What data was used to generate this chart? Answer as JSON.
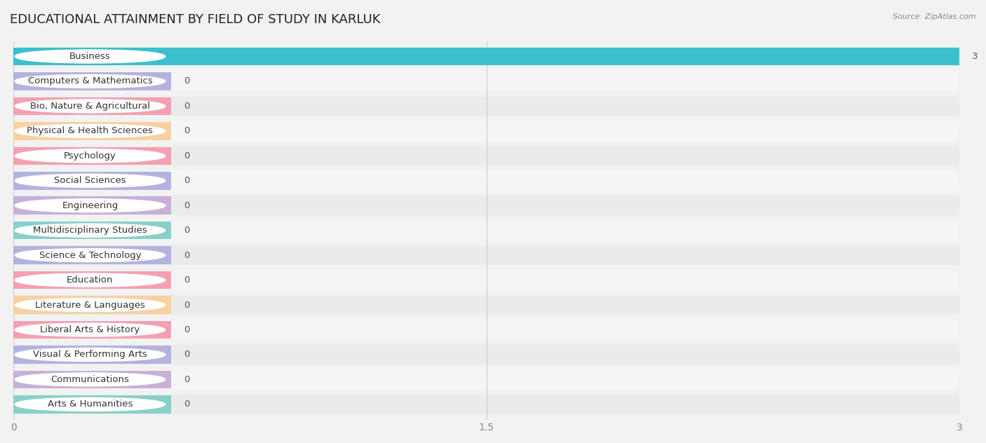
{
  "title": "EDUCATIONAL ATTAINMENT BY FIELD OF STUDY IN KARLUK",
  "source": "Source: ZipAtlas.com",
  "categories": [
    "Business",
    "Computers & Mathematics",
    "Bio, Nature & Agricultural",
    "Physical & Health Sciences",
    "Psychology",
    "Social Sciences",
    "Engineering",
    "Multidisciplinary Studies",
    "Science & Technology",
    "Education",
    "Literature & Languages",
    "Liberal Arts & History",
    "Visual & Performing Arts",
    "Communications",
    "Arts & Humanities"
  ],
  "values": [
    3,
    0,
    0,
    0,
    0,
    0,
    0,
    0,
    0,
    0,
    0,
    0,
    0,
    0,
    0
  ],
  "bar_colors": [
    "#3bbfcc",
    "#b3b3e0",
    "#f4a0b0",
    "#f9d0a0",
    "#f4a0b0",
    "#b3b3e0",
    "#c8b0d8",
    "#88d0c8",
    "#b3b3e0",
    "#f4a0b0",
    "#f9d0a0",
    "#f4a0b0",
    "#b3b3e0",
    "#c8b0d8",
    "#88d0c8"
  ],
  "xlim": [
    0,
    3
  ],
  "xticks": [
    0,
    1.5,
    3
  ],
  "background_color": "#f2f2f2",
  "row_colors": [
    "#ebebeb",
    "#f5f5f5"
  ],
  "white_pill_color": "#ffffff",
  "title_fontsize": 13,
  "label_fontsize": 9.5,
  "tick_fontsize": 9,
  "value_label_color": "#555555",
  "bar_height": 0.72
}
